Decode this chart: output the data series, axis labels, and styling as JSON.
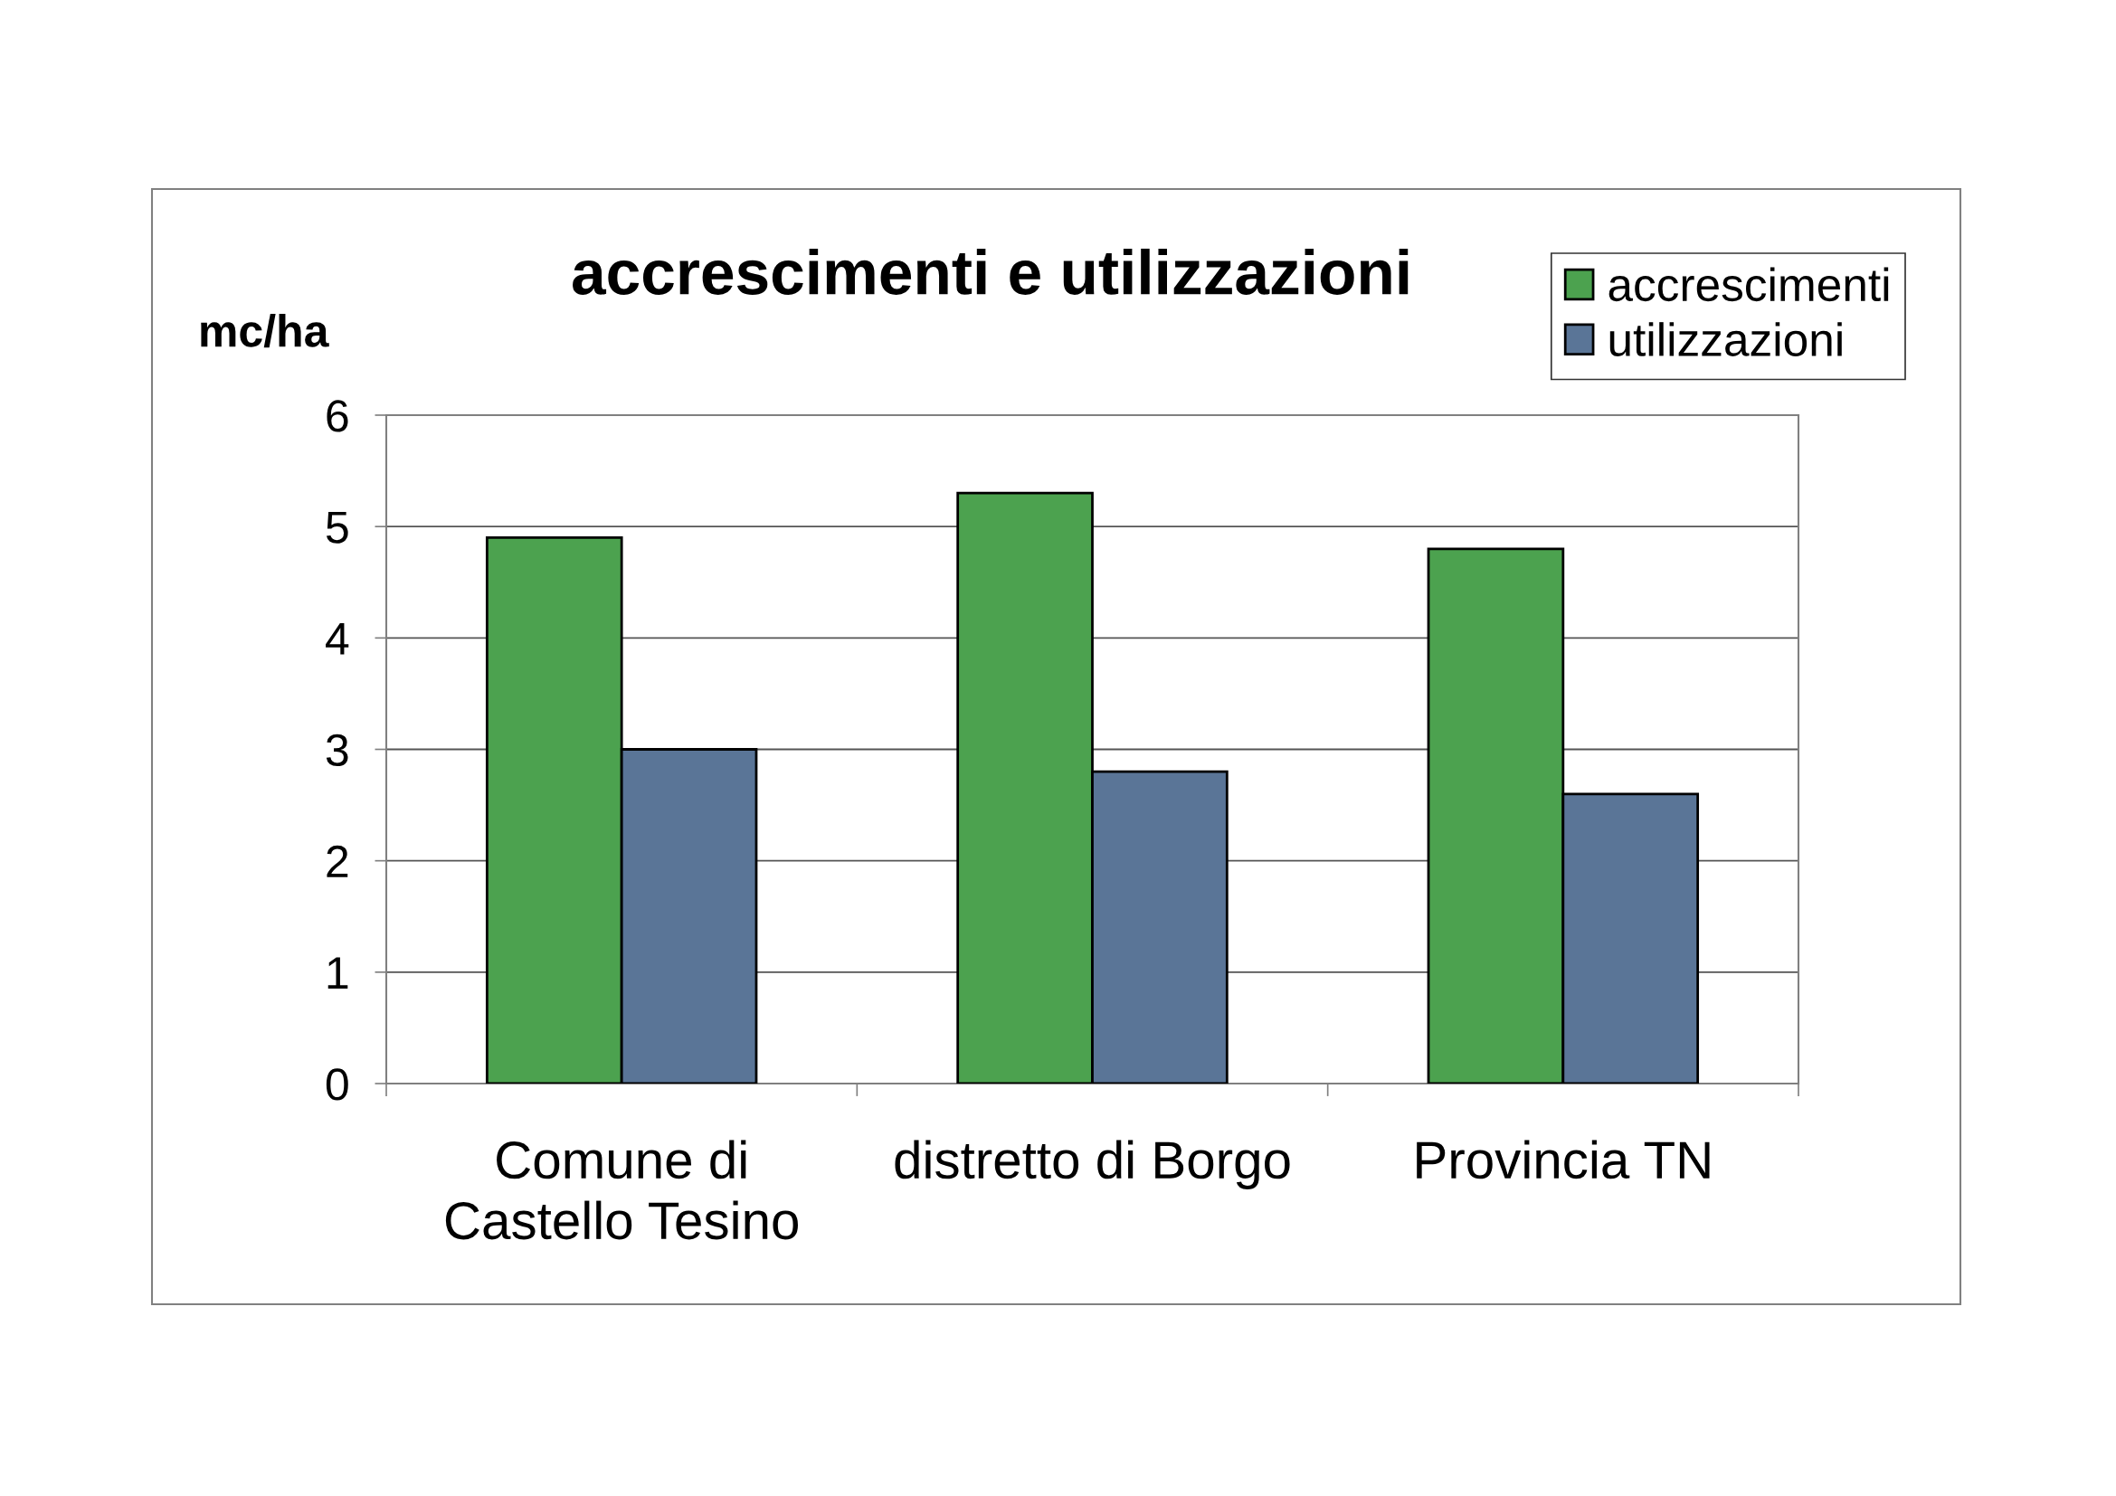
{
  "chart_data": {
    "type": "bar",
    "title": "accrescimenti e utilizzazioni",
    "ylabel": "mc/ha",
    "categories": [
      "Comune di\nCastello Tesino",
      "distretto di Borgo",
      "Provincia TN"
    ],
    "series": [
      {
        "name": "accrescimenti",
        "color": "#4ca24f",
        "values": [
          4.9,
          5.3,
          4.8
        ]
      },
      {
        "name": "utilizzazioni",
        "color": "#5a7597",
        "values": [
          3.0,
          2.8,
          2.6
        ]
      }
    ],
    "ylim": [
      0,
      6
    ],
    "yticks": [
      0,
      1,
      2,
      3,
      4,
      5,
      6
    ],
    "grid": "y",
    "legend": "top right"
  }
}
